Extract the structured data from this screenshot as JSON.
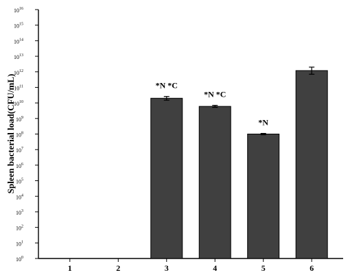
{
  "chart_data": {
    "type": "bar",
    "title": "",
    "xlabel": "",
    "ylabel": "Spleen bacterial load(CFU/mL)",
    "yscale": "log",
    "ylim": [
      1,
      1e+16
    ],
    "yticks": [
      {
        "base": "10",
        "exp": "0"
      },
      {
        "base": "10",
        "exp": "1"
      },
      {
        "base": "10",
        "exp": "2"
      },
      {
        "base": "10",
        "exp": "3"
      },
      {
        "base": "10",
        "exp": "4"
      },
      {
        "base": "10",
        "exp": "5"
      },
      {
        "base": "10",
        "exp": "6"
      },
      {
        "base": "10",
        "exp": "7"
      },
      {
        "base": "10",
        "exp": "8"
      },
      {
        "base": "10",
        "exp": "9"
      },
      {
        "base": "10",
        "exp": "10"
      },
      {
        "base": "10",
        "exp": "11"
      },
      {
        "base": "10",
        "exp": "12"
      },
      {
        "base": "10",
        "exp": "13"
      },
      {
        "base": "10",
        "exp": "14"
      },
      {
        "base": "10",
        "exp": "15"
      },
      {
        "base": "10",
        "exp": "16"
      }
    ],
    "categories": [
      "1",
      "2",
      "3",
      "4",
      "5",
      "6"
    ],
    "values": [
      null,
      null,
      20000000000.0,
      6000000000.0,
      100000000.0,
      1200000000000.0
    ],
    "error_high": [
      null,
      null,
      26000000000.0,
      7000000000.0,
      110000000.0,
      2000000000000.0
    ],
    "error_low": [
      null,
      null,
      15000000000.0,
      5200000000.0,
      90000000.0,
      700000000000.0
    ],
    "annotations": [
      "",
      "",
      "*N *C",
      "*N *C",
      "*N",
      ""
    ],
    "bar_color": "#404040",
    "grid": false,
    "legend": "none"
  }
}
